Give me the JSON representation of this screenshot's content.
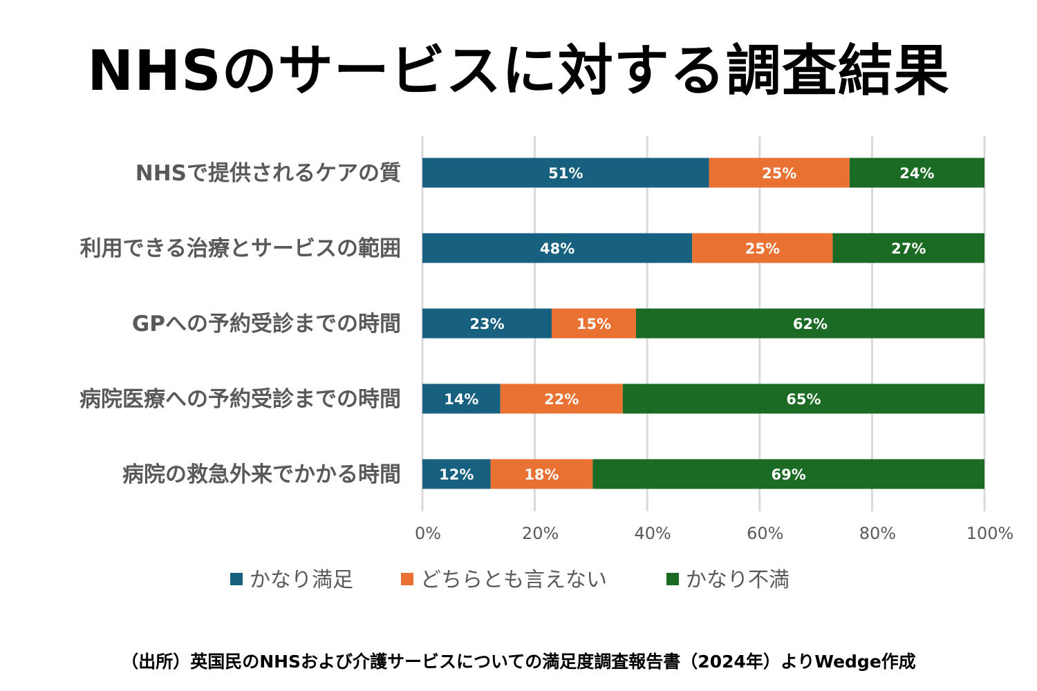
{
  "chart_data": {
    "type": "bar",
    "orientation": "horizontal",
    "stacked": "100%",
    "title": "NHSのサービスに対する調査結果",
    "source": "（出所）英国民のNHSおよび介護サービスについての満足度調査報告書（2024年）よりWedge作成",
    "categories": [
      "NHSで提供されるケアの質",
      "利用できる治療とサービスの範囲",
      "GPへの予約受診までの時間",
      "病院医療への予約受診までの時間",
      "病院の救急外来でかかる時間"
    ],
    "series": [
      {
        "name": "かなり満足",
        "color": "#18607f",
        "values": [
          51,
          48,
          23,
          14,
          12
        ]
      },
      {
        "name": "どちらとも言えない",
        "color": "#e97132",
        "values": [
          25,
          25,
          15,
          22,
          18
        ]
      },
      {
        "name": "かなり不満",
        "color": "#1b6b24",
        "values": [
          24,
          27,
          62,
          65,
          69
        ]
      }
    ],
    "xlim": [
      0,
      100
    ],
    "xticks": [
      "0%",
      "20%",
      "40%",
      "60%",
      "80%",
      "100%"
    ],
    "grid": true,
    "legend": "bottom",
    "data_label_suffix": "%"
  }
}
